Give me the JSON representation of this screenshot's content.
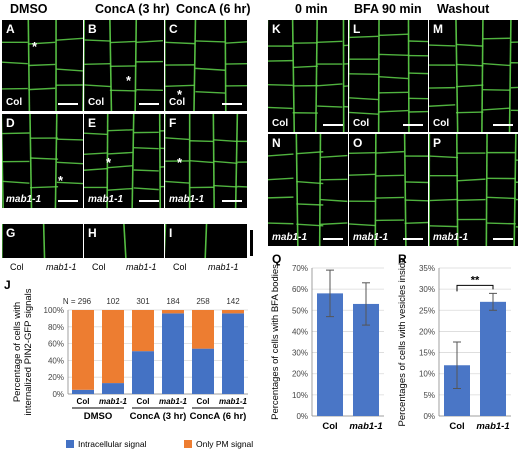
{
  "headers": {
    "dmso": "DMSO",
    "conca3": "ConcA (3 hr)",
    "conca6": "ConcA (6 hr)",
    "min0": "0 min",
    "bfa90": "BFA 90 min",
    "washout": "Washout"
  },
  "panels": {
    "A": {
      "letter": "A",
      "label": "Col"
    },
    "B": {
      "letter": "B",
      "label": "Col"
    },
    "C": {
      "letter": "C",
      "label": "Col"
    },
    "D": {
      "letter": "D",
      "label": "mab1-1"
    },
    "E": {
      "letter": "E",
      "label": "mab1-1"
    },
    "F": {
      "letter": "F",
      "label": "mab1-1"
    },
    "G": {
      "letter": "G"
    },
    "H": {
      "letter": "H"
    },
    "I": {
      "letter": "I"
    },
    "K": {
      "letter": "K",
      "label": "Col"
    },
    "L": {
      "letter": "L",
      "label": "Col"
    },
    "M": {
      "letter": "M",
      "label": "Col"
    },
    "N": {
      "letter": "N",
      "label": "mab1-1"
    },
    "O": {
      "letter": "O",
      "label": "mab1-1"
    },
    "P": {
      "letter": "P",
      "label": "mab1-1"
    }
  },
  "gcaps": {
    "col": "Col",
    "mab": "mab1-1"
  },
  "chart_data": [
    {
      "id": "J",
      "type": "bar",
      "stacked": true,
      "letter": "J",
      "ylabel_lines": [
        "Percentage of  cells with",
        "internalized PIN2-GFP signals"
      ],
      "yticks": [
        "0%",
        "20%",
        "40%",
        "60%",
        "80%",
        "100%"
      ],
      "ylim": [
        0,
        100
      ],
      "categories": [
        "Col",
        "mab1-1",
        "Col",
        "mab1-1",
        "Col",
        "mab1-1"
      ],
      "n_labels": [
        "N = 296",
        "102",
        "301",
        "184",
        "258",
        "142"
      ],
      "groups": [
        "DMSO",
        "ConcA (3 hr)",
        "ConcA (6 hr)"
      ],
      "series": [
        {
          "name": "Intracellular signal",
          "color": "#4472c4",
          "values": [
            5,
            13,
            51,
            96,
            54,
            96
          ]
        },
        {
          "name": "Only PM signal",
          "color": "#ed7d31",
          "values": [
            95,
            87,
            49,
            4,
            46,
            4
          ]
        }
      ],
      "legend_position": "bottom"
    },
    {
      "id": "Q",
      "type": "bar",
      "letter": "Q",
      "ylabel": "Percentages of cells with BFA bodies",
      "yticks": [
        "0%",
        "10%",
        "20%",
        "30%",
        "40%",
        "50%",
        "60%",
        "70%"
      ],
      "ylim": [
        0,
        70
      ],
      "categories": [
        "Col",
        "mab1-1"
      ],
      "values": [
        58,
        53
      ],
      "errors": [
        11,
        10
      ],
      "color": "#4a76c6"
    },
    {
      "id": "R",
      "type": "bar",
      "letter": "R",
      "ylabel": "Percentages of cells with vesicles inside",
      "yticks": [
        "0%",
        "5%",
        "10%",
        "15%",
        "20%",
        "25%",
        "30%",
        "35%"
      ],
      "ylim": [
        0,
        35
      ],
      "categories": [
        "Col",
        "mab1-1"
      ],
      "values": [
        12,
        27
      ],
      "errors": [
        5.5,
        2
      ],
      "color": "#4a76c6",
      "significance": "**"
    }
  ]
}
